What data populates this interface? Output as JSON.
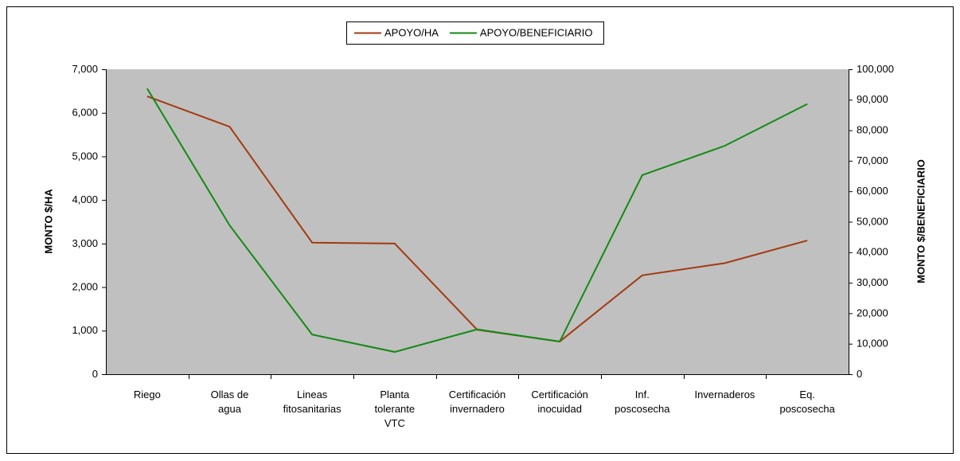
{
  "chart_data": {
    "type": "line",
    "categories": [
      "Riego",
      "Ollas de\nagua",
      "Lineas\nfitosanitarias",
      "Planta\ntolerante\nVTC",
      "Certificación\ninvernadero",
      "Certificación\ninocuidad",
      "Inf.\nposcosecha",
      "Invernaderos",
      "Eq.\nposcosecha"
    ],
    "series": [
      {
        "name": "APOYO/HA",
        "color": "#a33a10",
        "values": [
          6380,
          5680,
          3020,
          3000,
          1020,
          750,
          2270,
          2550,
          3070
        ]
      },
      {
        "name": "APOYO/BENEFICIARIO",
        "color": "#138a13",
        "axis": "y2",
        "values": [
          93700,
          48800,
          13000,
          7300,
          14700,
          10700,
          65300,
          74900,
          88600
        ]
      }
    ],
    "ylabel": "MONTO $/HA",
    "y2label": "MONTO $/BENEFICIARIO",
    "ylim": [
      0,
      7000
    ],
    "yticks": [
      0,
      {
        "value": 1000,
        "label": "1,000"
      },
      {
        "value": 2000,
        "label": "2,000"
      },
      {
        "value": 3000,
        "label": "3,000"
      },
      {
        "value": 4000,
        "label": "4,000"
      },
      {
        "value": 5000,
        "label": "5,000"
      },
      {
        "value": 6000,
        "label": "6,000"
      },
      {
        "value": 7000,
        "label": "7,000"
      }
    ],
    "y2lim": [
      0,
      100000
    ],
    "y2ticks": [
      0,
      {
        "value": 10000,
        "label": "10,000"
      },
      {
        "value": 20000,
        "label": "20,000"
      },
      {
        "value": 30000,
        "label": "30,000"
      },
      {
        "value": 40000,
        "label": "40,000"
      },
      {
        "value": 50000,
        "label": "50,000"
      },
      {
        "value": 60000,
        "label": "60,000"
      },
      {
        "value": 70000,
        "label": "70,000"
      },
      {
        "value": 80000,
        "label": "80,000"
      },
      {
        "value": 90000,
        "label": "90,000"
      },
      {
        "value": 100000,
        "label": "100,000"
      }
    ],
    "plot_background": "#c0c0c0",
    "legend": "top"
  }
}
